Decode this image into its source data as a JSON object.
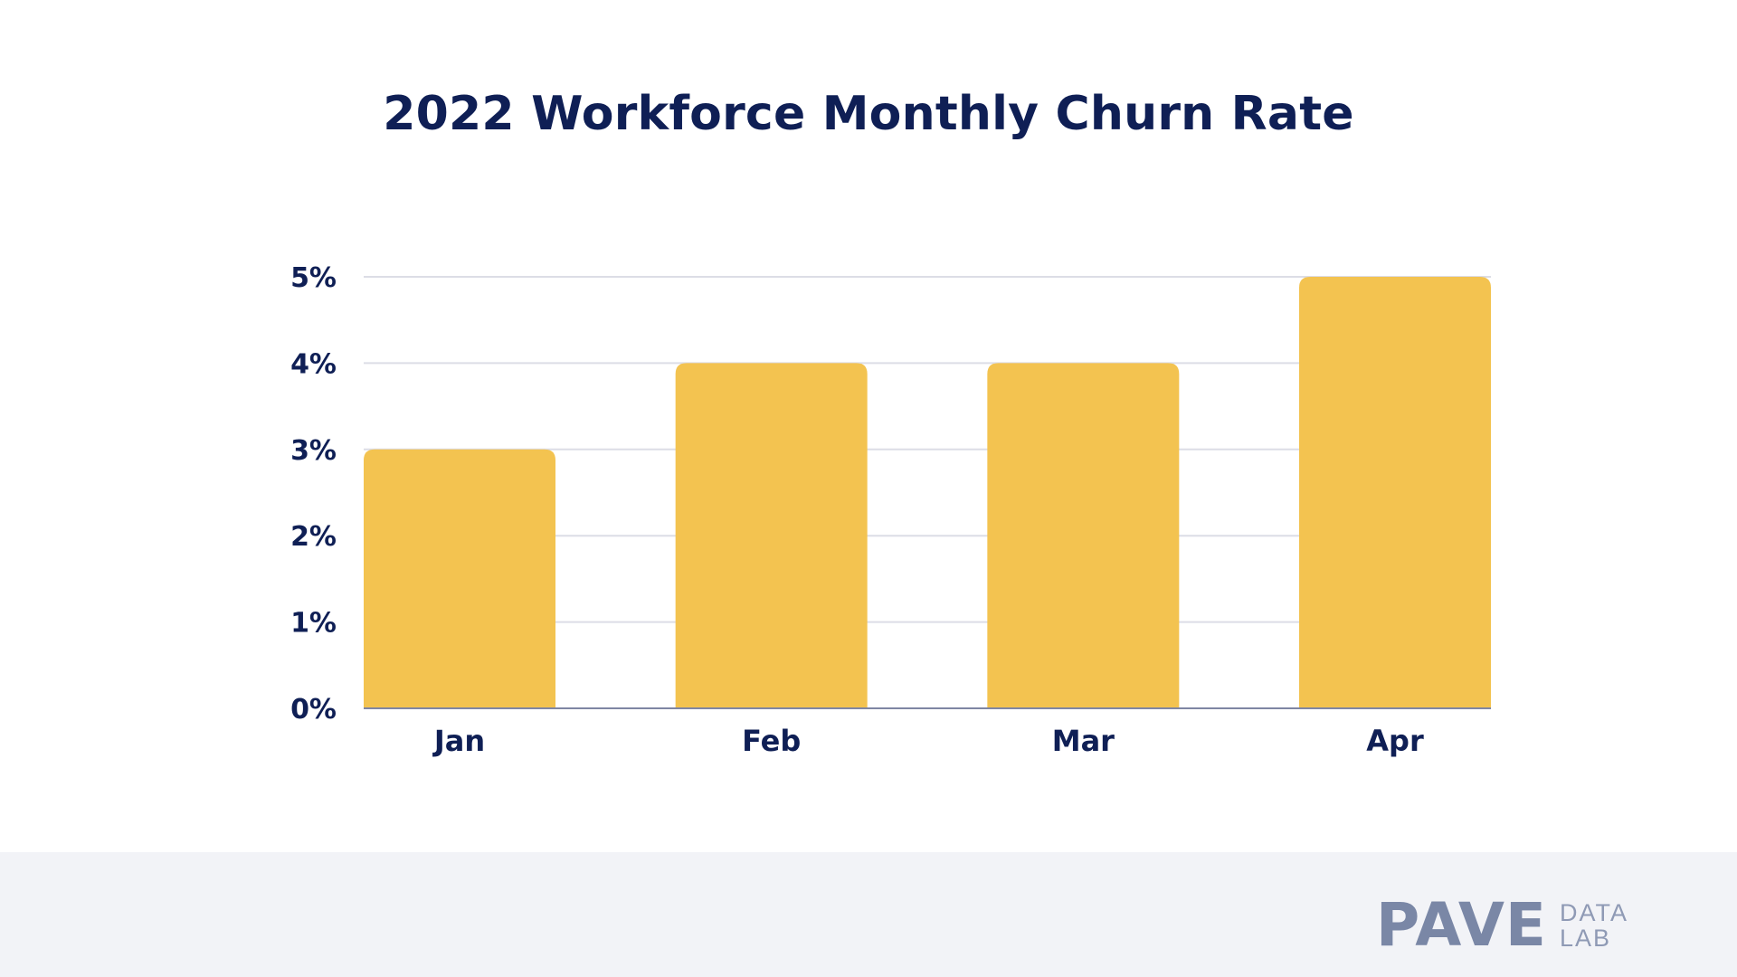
{
  "chart_data": {
    "type": "bar",
    "title": "2022 Workforce Monthly Churn Rate",
    "categories": [
      "Jan",
      "Feb",
      "Mar",
      "Apr"
    ],
    "values": [
      3,
      4,
      4,
      5
    ],
    "ylim": [
      0,
      5
    ],
    "yticks": [
      "0%",
      "1%",
      "2%",
      "3%",
      "4%",
      "5%"
    ],
    "grid": true,
    "bar_color": "#f3c350",
    "text_color": "#0f1f55",
    "grid_color": "#dcdde6"
  },
  "footer": {
    "logo_main": "PAVE",
    "logo_sub_top": "DATA",
    "logo_sub_bottom": "LAB"
  }
}
